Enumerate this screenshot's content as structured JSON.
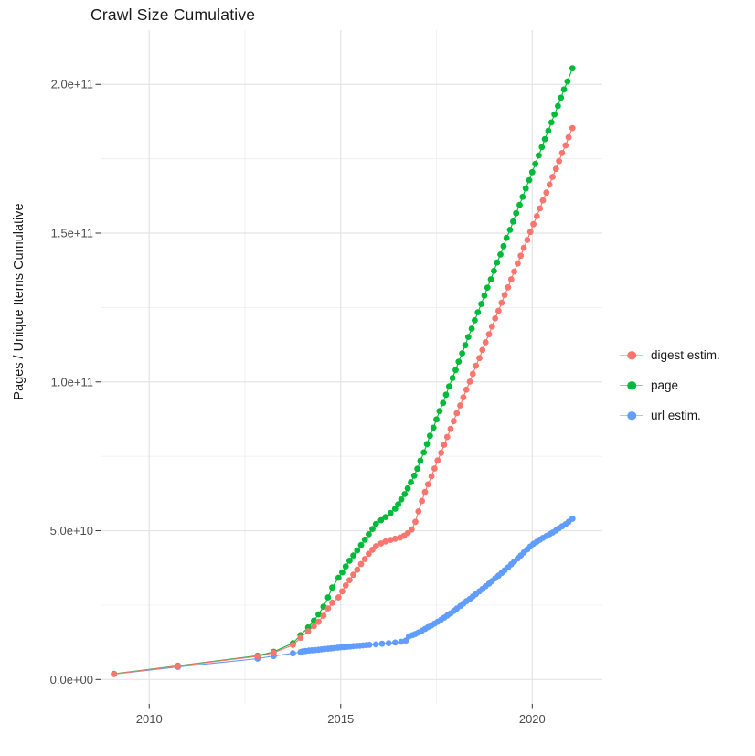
{
  "title": "Crawl Size Cumulative",
  "axes": {
    "y_title": "Pages / Unique Items Cumulative",
    "x_title": ""
  },
  "legend": {
    "items": [
      {
        "label": "digest estim.",
        "color": "#F8766D"
      },
      {
        "label": "page",
        "color": "#00BA38"
      },
      {
        "label": "url estim.",
        "color": "#619CFF"
      }
    ]
  },
  "chart_data": {
    "type": "line",
    "title": "Crawl Size Cumulative",
    "xlabel": "",
    "ylabel": "Pages / Unique Items Cumulative",
    "x_unit": "year (decimal)",
    "y_unit": "cumulative count; point values below are in billions (1e9)",
    "grid": true,
    "legend_position": "right",
    "x_ticks": [
      2010,
      2015,
      2020
    ],
    "x_tick_labels": [
      "2010",
      "2015",
      "2020"
    ],
    "x_minor_ticks": [
      2012.5,
      2017.5
    ],
    "y_ticks_billions": [
      0,
      50,
      100,
      150,
      200
    ],
    "y_tick_labels": [
      "0.0e+00",
      "5.0e+10",
      "1.0e+11",
      "1.5e+11",
      "2.0e+11"
    ],
    "y_minor_ticks_billions": [
      25,
      75,
      125,
      175
    ],
    "xlim": [
      2008.73,
      2021.83
    ],
    "ylim_billions": [
      -8.2,
      218.2
    ],
    "point_radius_px": 3.4,
    "series": [
      {
        "name": "digest estim.",
        "color": "#F8766D",
        "points": [
          [
            2009.08,
            1.8
          ],
          [
            2010.75,
            4.5
          ],
          [
            2012.83,
            7.8
          ],
          [
            2013.25,
            9.0
          ],
          [
            2013.75,
            11.6
          ],
          [
            2013.95,
            14.0
          ],
          [
            2014.15,
            16.2
          ],
          [
            2014.3,
            17.9
          ],
          [
            2014.42,
            19.4
          ],
          [
            2014.55,
            21.4
          ],
          [
            2014.67,
            23.9
          ],
          [
            2014.78,
            25.8
          ],
          [
            2014.94,
            27.6
          ],
          [
            2015.04,
            29.6
          ],
          [
            2015.13,
            31.6
          ],
          [
            2015.23,
            33.4
          ],
          [
            2015.33,
            35.2
          ],
          [
            2015.43,
            36.9
          ],
          [
            2015.53,
            38.8
          ],
          [
            2015.63,
            40.5
          ],
          [
            2015.73,
            42.2
          ],
          [
            2015.83,
            43.6
          ],
          [
            2015.92,
            44.8
          ],
          [
            2016.05,
            45.7
          ],
          [
            2016.17,
            46.4
          ],
          [
            2016.3,
            46.9
          ],
          [
            2016.42,
            47.3
          ],
          [
            2016.55,
            47.7
          ],
          [
            2016.65,
            48.3
          ],
          [
            2016.75,
            49.2
          ],
          [
            2016.85,
            50.4
          ],
          [
            2016.95,
            53.0
          ],
          [
            2017.03,
            56.5
          ],
          [
            2017.12,
            60.0
          ],
          [
            2017.2,
            63.0
          ],
          [
            2017.28,
            65.6
          ],
          [
            2017.37,
            68.3
          ],
          [
            2017.45,
            70.9
          ],
          [
            2017.53,
            73.6
          ],
          [
            2017.62,
            76.2
          ],
          [
            2017.7,
            78.9
          ],
          [
            2017.78,
            81.5
          ],
          [
            2017.87,
            84.2
          ],
          [
            2017.95,
            86.8
          ],
          [
            2018.03,
            89.5
          ],
          [
            2018.12,
            92.1
          ],
          [
            2018.2,
            94.8
          ],
          [
            2018.28,
            97.4
          ],
          [
            2018.37,
            100.1
          ],
          [
            2018.45,
            102.7
          ],
          [
            2018.53,
            105.4
          ],
          [
            2018.62,
            108.0
          ],
          [
            2018.7,
            110.7
          ],
          [
            2018.78,
            113.3
          ],
          [
            2018.87,
            116.0
          ],
          [
            2018.95,
            118.6
          ],
          [
            2019.03,
            121.3
          ],
          [
            2019.12,
            123.9
          ],
          [
            2019.2,
            126.6
          ],
          [
            2019.28,
            129.2
          ],
          [
            2019.37,
            131.8
          ],
          [
            2019.45,
            134.5
          ],
          [
            2019.53,
            137.1
          ],
          [
            2019.62,
            139.8
          ],
          [
            2019.7,
            142.4
          ],
          [
            2019.78,
            145.1
          ],
          [
            2019.87,
            147.7
          ],
          [
            2019.95,
            150.4
          ],
          [
            2020.03,
            153.0
          ],
          [
            2020.12,
            155.7
          ],
          [
            2020.2,
            158.3
          ],
          [
            2020.28,
            161.0
          ],
          [
            2020.37,
            163.6
          ],
          [
            2020.45,
            166.3
          ],
          [
            2020.53,
            168.9
          ],
          [
            2020.62,
            171.6
          ],
          [
            2020.7,
            174.2
          ],
          [
            2020.78,
            176.9
          ],
          [
            2020.87,
            179.5
          ],
          [
            2020.95,
            182.2
          ],
          [
            2021.05,
            185.3
          ]
        ]
      },
      {
        "name": "page",
        "color": "#00BA38",
        "points": [
          [
            2009.08,
            1.9
          ],
          [
            2010.75,
            4.6
          ],
          [
            2012.83,
            8.0
          ],
          [
            2013.25,
            9.3
          ],
          [
            2013.75,
            12.2
          ],
          [
            2013.95,
            14.9
          ],
          [
            2014.15,
            17.5
          ],
          [
            2014.3,
            19.8
          ],
          [
            2014.42,
            21.9
          ],
          [
            2014.55,
            24.5
          ],
          [
            2014.67,
            27.6
          ],
          [
            2014.78,
            30.9
          ],
          [
            2014.94,
            34.2
          ],
          [
            2015.04,
            36.0
          ],
          [
            2015.13,
            38.0
          ],
          [
            2015.23,
            39.9
          ],
          [
            2015.33,
            41.7
          ],
          [
            2015.43,
            43.4
          ],
          [
            2015.53,
            45.2
          ],
          [
            2015.63,
            47.0
          ],
          [
            2015.73,
            48.8
          ],
          [
            2015.83,
            50.6
          ],
          [
            2015.92,
            52.3
          ],
          [
            2016.05,
            53.5
          ],
          [
            2016.17,
            54.6
          ],
          [
            2016.3,
            55.9
          ],
          [
            2016.42,
            57.4
          ],
          [
            2016.5,
            58.9
          ],
          [
            2016.58,
            60.5
          ],
          [
            2016.67,
            62.3
          ],
          [
            2016.75,
            64.2
          ],
          [
            2016.83,
            66.3
          ],
          [
            2016.92,
            68.5
          ],
          [
            2017.0,
            70.8
          ],
          [
            2017.08,
            73.5
          ],
          [
            2017.17,
            76.3
          ],
          [
            2017.25,
            79.1
          ],
          [
            2017.33,
            81.9
          ],
          [
            2017.42,
            84.6
          ],
          [
            2017.5,
            87.4
          ],
          [
            2017.58,
            90.2
          ],
          [
            2017.67,
            92.9
          ],
          [
            2017.75,
            95.7
          ],
          [
            2017.83,
            98.5
          ],
          [
            2017.92,
            101.3
          ],
          [
            2018.0,
            104.0
          ],
          [
            2018.08,
            106.8
          ],
          [
            2018.17,
            109.6
          ],
          [
            2018.25,
            112.3
          ],
          [
            2018.33,
            115.1
          ],
          [
            2018.42,
            117.9
          ],
          [
            2018.5,
            120.7
          ],
          [
            2018.58,
            123.4
          ],
          [
            2018.67,
            126.2
          ],
          [
            2018.75,
            129.0
          ],
          [
            2018.83,
            131.7
          ],
          [
            2018.92,
            134.5
          ],
          [
            2019.0,
            137.3
          ],
          [
            2019.08,
            140.1
          ],
          [
            2019.17,
            142.8
          ],
          [
            2019.25,
            145.6
          ],
          [
            2019.33,
            148.4
          ],
          [
            2019.42,
            151.1
          ],
          [
            2019.5,
            153.9
          ],
          [
            2019.58,
            156.7
          ],
          [
            2019.67,
            159.5
          ],
          [
            2019.75,
            162.2
          ],
          [
            2019.83,
            165.0
          ],
          [
            2019.92,
            167.8
          ],
          [
            2020.0,
            170.5
          ],
          [
            2020.08,
            173.3
          ],
          [
            2020.17,
            176.1
          ],
          [
            2020.25,
            178.9
          ],
          [
            2020.33,
            181.6
          ],
          [
            2020.42,
            184.4
          ],
          [
            2020.5,
            187.2
          ],
          [
            2020.58,
            189.9
          ],
          [
            2020.67,
            192.7
          ],
          [
            2020.75,
            195.5
          ],
          [
            2020.83,
            198.3
          ],
          [
            2020.92,
            201.0
          ],
          [
            2021.05,
            205.4
          ]
        ]
      },
      {
        "name": "url estim.",
        "color": "#619CFF",
        "points": [
          [
            2009.08,
            1.8
          ],
          [
            2010.75,
            4.2
          ],
          [
            2012.83,
            7.0
          ],
          [
            2013.25,
            7.9
          ],
          [
            2013.75,
            8.8
          ],
          [
            2013.95,
            9.2
          ],
          [
            2014.0,
            9.4
          ],
          [
            2014.08,
            9.55
          ],
          [
            2014.17,
            9.7
          ],
          [
            2014.25,
            9.8
          ],
          [
            2014.33,
            9.9
          ],
          [
            2014.42,
            10.0
          ],
          [
            2014.5,
            10.1
          ],
          [
            2014.58,
            10.25
          ],
          [
            2014.67,
            10.35
          ],
          [
            2014.75,
            10.45
          ],
          [
            2014.83,
            10.55
          ],
          [
            2014.92,
            10.7
          ],
          [
            2015.0,
            10.8
          ],
          [
            2015.08,
            10.9
          ],
          [
            2015.17,
            11.0
          ],
          [
            2015.25,
            11.1
          ],
          [
            2015.33,
            11.2
          ],
          [
            2015.42,
            11.3
          ],
          [
            2015.5,
            11.35
          ],
          [
            2015.58,
            11.45
          ],
          [
            2015.67,
            11.55
          ],
          [
            2015.75,
            11.65
          ],
          [
            2015.92,
            11.8
          ],
          [
            2016.08,
            12.0
          ],
          [
            2016.25,
            12.2
          ],
          [
            2016.42,
            12.4
          ],
          [
            2016.58,
            12.7
          ],
          [
            2016.7,
            13.1
          ],
          [
            2016.78,
            14.5
          ],
          [
            2016.87,
            14.9
          ],
          [
            2016.95,
            15.3
          ],
          [
            2017.03,
            15.8
          ],
          [
            2017.12,
            16.4
          ],
          [
            2017.2,
            17.0
          ],
          [
            2017.28,
            17.6
          ],
          [
            2017.37,
            18.2
          ],
          [
            2017.45,
            18.8
          ],
          [
            2017.53,
            19.4
          ],
          [
            2017.62,
            20.1
          ],
          [
            2017.7,
            20.8
          ],
          [
            2017.78,
            21.5
          ],
          [
            2017.87,
            22.2
          ],
          [
            2017.95,
            23.0
          ],
          [
            2018.03,
            23.8
          ],
          [
            2018.12,
            24.7
          ],
          [
            2018.2,
            25.5
          ],
          [
            2018.28,
            26.3
          ],
          [
            2018.37,
            27.1
          ],
          [
            2018.45,
            27.9
          ],
          [
            2018.53,
            28.7
          ],
          [
            2018.62,
            29.6
          ],
          [
            2018.7,
            30.4
          ],
          [
            2018.78,
            31.3
          ],
          [
            2018.87,
            32.2
          ],
          [
            2018.95,
            33.1
          ],
          [
            2019.03,
            34.0
          ],
          [
            2019.12,
            34.9
          ],
          [
            2019.2,
            35.8
          ],
          [
            2019.28,
            36.7
          ],
          [
            2019.37,
            37.7
          ],
          [
            2019.45,
            38.7
          ],
          [
            2019.53,
            39.7
          ],
          [
            2019.62,
            40.7
          ],
          [
            2019.7,
            41.7
          ],
          [
            2019.78,
            42.7
          ],
          [
            2019.87,
            43.7
          ],
          [
            2019.95,
            44.7
          ],
          [
            2020.03,
            45.6
          ],
          [
            2020.12,
            46.3
          ],
          [
            2020.2,
            47.0
          ],
          [
            2020.28,
            47.6
          ],
          [
            2020.37,
            48.2
          ],
          [
            2020.45,
            48.8
          ],
          [
            2020.53,
            49.4
          ],
          [
            2020.62,
            50.1
          ],
          [
            2020.7,
            50.8
          ],
          [
            2020.78,
            51.5
          ],
          [
            2020.87,
            52.2
          ],
          [
            2020.95,
            53.0
          ],
          [
            2021.05,
            54.0
          ]
        ]
      }
    ]
  }
}
